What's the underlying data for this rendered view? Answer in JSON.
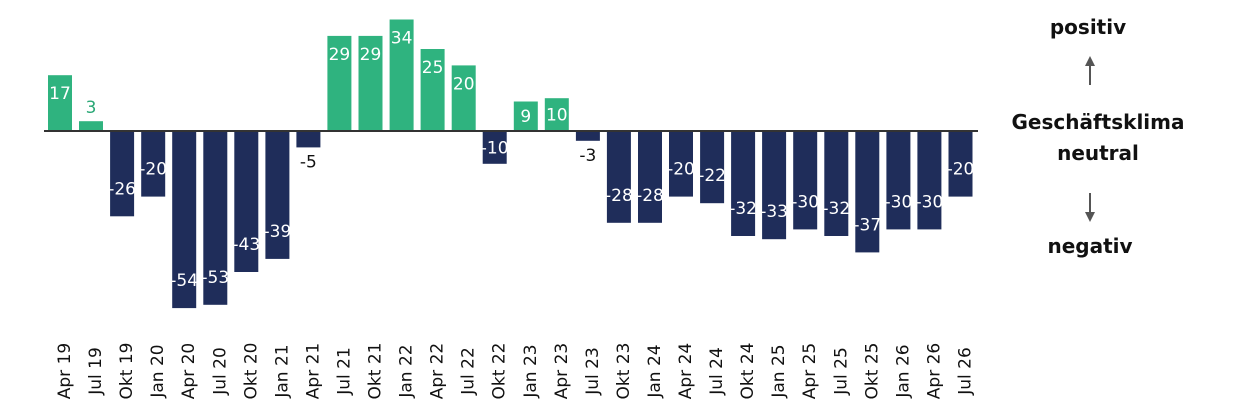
{
  "chart_data": {
    "type": "bar",
    "categories": [
      "Apr 19",
      "Jul 19",
      "Okt 19",
      "Jan 20",
      "Apr 20",
      "Jul 20",
      "Okt 20",
      "Jan 21",
      "Apr 21",
      "Jul 21",
      "Okt 21",
      "Jan 22",
      "Apr 22",
      "Jul 22",
      "Okt 22",
      "Jan 23",
      "Apr 23",
      "Jul 23",
      "Okt 23",
      "Jan 24",
      "Apr 24",
      "Jul 24",
      "Okt 24",
      "Jan 25",
      "Apr 25",
      "Jul 25",
      "Okt 25",
      "Jan 26",
      "Apr 26",
      "Jul 26"
    ],
    "values": [
      17,
      3,
      -26,
      -20,
      -54,
      -53,
      -43,
      -39,
      -5,
      29,
      29,
      34,
      25,
      20,
      -10,
      9,
      10,
      -3,
      -28,
      -28,
      -20,
      -22,
      -32,
      -33,
      -30,
      -32,
      -37,
      -30,
      -30,
      -20
    ],
    "positive_color": "#2fb37f",
    "negative_color": "#1f2d5a",
    "title": "",
    "xlabel": "",
    "ylabel": "",
    "ylim": [
      -55,
      35
    ],
    "grid": false,
    "legend_position": "right"
  },
  "legend": {
    "top_label": "positiv",
    "middle_label_line1": "Geschäftsklima",
    "middle_label_line2": "neutral",
    "bottom_label": "negativ",
    "arrow_color": "#555555"
  }
}
